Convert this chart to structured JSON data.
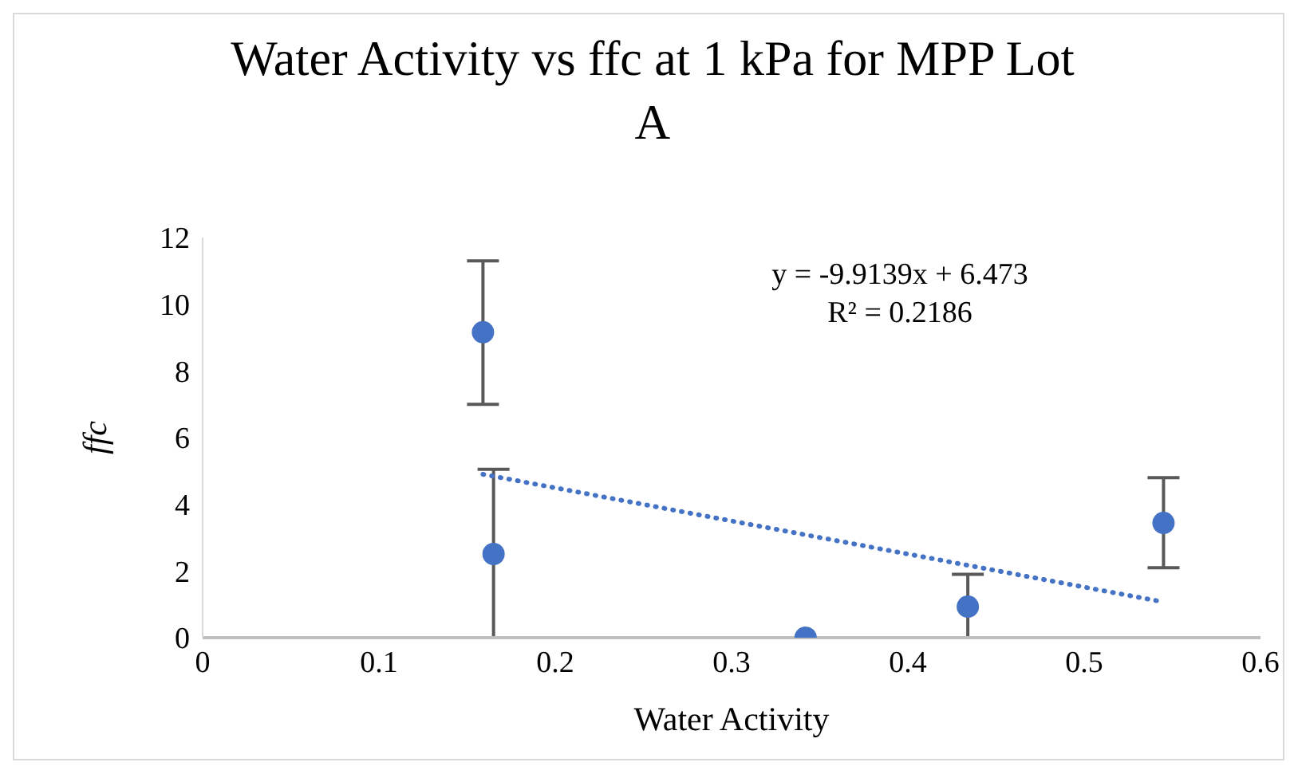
{
  "chart_data": {
    "type": "scatter",
    "title": "Water Activity vs ffc at 1 kPa for MPP Lot A",
    "xlabel": "Water Activity",
    "ylabel": "ffc",
    "xlim": [
      0,
      0.6
    ],
    "xticks": [
      0,
      0.1,
      0.2,
      0.3,
      0.4,
      0.5,
      0.6
    ],
    "ylim": [
      0,
      12
    ],
    "yticks": [
      0,
      2,
      4,
      6,
      8,
      10,
      12
    ],
    "grid": false,
    "legend": false,
    "annotations": [
      "y = -9.9139x + 6.473",
      "R² = 0.2186"
    ],
    "series": [
      {
        "marker": "circle",
        "color": "#4472c4",
        "x": [
          0.159,
          0.165,
          0.342,
          0.434,
          0.545
        ],
        "values": [
          9.16,
          2.51,
          0,
          0.93,
          3.44
        ],
        "errors": [
          [
            7.0,
            11.3
          ],
          [
            0,
            5.05
          ],
          null,
          [
            0,
            1.9
          ],
          [
            2.1,
            4.8
          ]
        ]
      },
      {
        "type": "line",
        "marker": "none",
        "color": "#4472c4",
        "line_style": "dotted",
        "x": [
          0.159,
          0.545
        ],
        "values": [
          4.9,
          1.07
        ]
      }
    ]
  }
}
